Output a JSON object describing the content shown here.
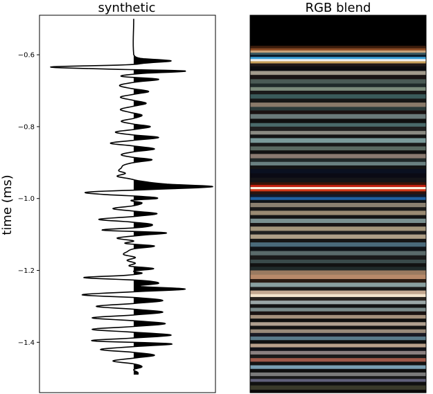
{
  "chart_data": [
    {
      "type": "line",
      "title": "synthetic",
      "xlabel": "",
      "ylabel": "time (ms)",
      "ylim": [
        -1.54,
        -0.49
      ],
      "yticks": [
        -0.6,
        -0.8,
        -1.0,
        -1.2,
        -1.4
      ],
      "ytick_labels": [
        "−0.6",
        "−0.8",
        "−1.0",
        "−1.2",
        "−1.4"
      ],
      "fill_positive": true,
      "series": [
        {
          "t": [
            -0.5,
            -0.6,
            -0.61,
            -0.617,
            -0.623,
            -0.628,
            -0.634,
            -0.64,
            -0.645,
            -0.652,
            -0.66,
            -0.668,
            -0.676,
            -0.685,
            -0.693,
            -0.702,
            -0.71,
            -0.718,
            -0.727,
            -0.735,
            -0.743,
            -0.752,
            -0.76,
            -0.768,
            -0.777,
            -0.785,
            -0.793,
            -0.8,
            -0.808,
            -0.815,
            -0.822,
            -0.83,
            -0.838,
            -0.846,
            -0.853,
            -0.862,
            -0.87,
            -0.878,
            -0.885,
            -0.892,
            -0.9,
            -0.907,
            -0.915,
            -0.923,
            -0.93,
            -0.938,
            -0.945,
            -0.952,
            -0.96,
            -0.967,
            -0.975,
            -0.982,
            -0.988,
            -0.995,
            -1.0,
            -1.005,
            -1.012,
            -1.02,
            -1.028,
            -1.035,
            -1.042,
            -1.05,
            -1.058,
            -1.065,
            -1.072,
            -1.08,
            -1.088,
            -1.095,
            -1.102,
            -1.11,
            -1.118,
            -1.125,
            -1.132,
            -1.14,
            -1.148,
            -1.156,
            -1.164,
            -1.172,
            -1.18,
            -1.188,
            -1.195,
            -1.202,
            -1.208,
            -1.214,
            -1.22,
            -1.228,
            -1.236,
            -1.244,
            -1.252,
            -1.26,
            -1.268,
            -1.276,
            -1.284,
            -1.292,
            -1.3,
            -1.308,
            -1.316,
            -1.324,
            -1.332,
            -1.34,
            -1.348,
            -1.356,
            -1.364,
            -1.372,
            -1.38,
            -1.388,
            -1.396,
            -1.404,
            -1.412,
            -1.42,
            -1.428,
            -1.436,
            -1.444,
            -1.452,
            -1.46,
            -1.468,
            -1.476,
            -1.484,
            -1.49
          ],
          "amplitude": [
            0,
            0,
            0.08,
            0.45,
            0.15,
            -0.1,
            -1.0,
            -0.3,
            0.62,
            0.1,
            -0.15,
            0.3,
            0.02,
            -0.17,
            -0.05,
            0.18,
            0.0,
            -0.16,
            0.0,
            0.15,
            0.0,
            -0.16,
            -0.05,
            0.1,
            0.0,
            -0.15,
            0.0,
            0.2,
            0.0,
            -0.22,
            -0.05,
            0.3,
            0.0,
            -0.28,
            -0.03,
            0.25,
            0.0,
            -0.15,
            -0.02,
            0.22,
            0.0,
            -0.12,
            -0.15,
            -0.18,
            -0.1,
            -0.2,
            -0.05,
            0.1,
            0.4,
            0.95,
            0.2,
            -0.55,
            -0.4,
            0.15,
            0.28,
            -0.03,
            0.1,
            0.0,
            -0.25,
            0.0,
            0.28,
            0.0,
            -0.42,
            -0.05,
            0.22,
            0.1,
            -0.38,
            0.38,
            0.1,
            -0.2,
            0.0,
            -0.1,
            0.25,
            0.0,
            -0.08,
            -0.12,
            0.02,
            -0.08,
            0.02,
            -0.05,
            0.24,
            0.0,
            0.1,
            -0.12,
            -0.6,
            0.1,
            0.3,
            0.05,
            0.62,
            -0.05,
            -0.62,
            0.05,
            0.35,
            0.0,
            -0.45,
            0.0,
            0.35,
            0.0,
            -0.5,
            0.0,
            0.38,
            0.0,
            -0.5,
            0.0,
            0.45,
            0.0,
            -0.5,
            0.45,
            0.0,
            -0.4,
            0.0,
            0.25,
            0.0,
            -0.25,
            0.0,
            0.1,
            0.0,
            0.05,
            0.05
          ]
        }
      ]
    },
    {
      "type": "heatmap",
      "title": "RGB blend",
      "xlabel": "",
      "ylabel": "",
      "ylim": [
        -1.54,
        -0.49
      ],
      "bands": [
        {
          "t0": -0.49,
          "t1": -0.575,
          "color": "#000000"
        },
        {
          "t0": -0.575,
          "t1": -0.582,
          "color": "#3a1c0c"
        },
        {
          "t0": -0.582,
          "t1": -0.588,
          "color": "#8a4a24"
        },
        {
          "t0": -0.588,
          "t1": -0.594,
          "color": "#c8a27a"
        },
        {
          "t0": -0.594,
          "t1": -0.6,
          "color": "#3c5a62"
        },
        {
          "t0": -0.6,
          "t1": -0.606,
          "color": "#0a1a2a"
        },
        {
          "t0": -0.606,
          "t1": -0.612,
          "color": "#3aa0d8"
        },
        {
          "t0": -0.612,
          "t1": -0.618,
          "color": "#f2f2f2"
        },
        {
          "t0": -0.618,
          "t1": -0.624,
          "color": "#c8a05a"
        },
        {
          "t0": -0.624,
          "t1": -0.632,
          "color": "#201818"
        },
        {
          "t0": -0.632,
          "t1": -0.645,
          "color": "#0c0c10"
        },
        {
          "t0": -0.645,
          "t1": -0.656,
          "color": "#a29a8c"
        },
        {
          "t0": -0.656,
          "t1": -0.668,
          "color": "#1a1414"
        },
        {
          "t0": -0.668,
          "t1": -0.68,
          "color": "#4a5a55"
        },
        {
          "t0": -0.68,
          "t1": -0.69,
          "color": "#202a2a"
        },
        {
          "t0": -0.69,
          "t1": -0.7,
          "color": "#7a8a7a"
        },
        {
          "t0": -0.7,
          "t1": -0.71,
          "color": "#1a1a1a"
        },
        {
          "t0": -0.71,
          "t1": -0.722,
          "color": "#3a5a5a"
        },
        {
          "t0": -0.722,
          "t1": -0.733,
          "color": "#161616"
        },
        {
          "t0": -0.733,
          "t1": -0.745,
          "color": "#8a7a6a"
        },
        {
          "t0": -0.745,
          "t1": -0.755,
          "color": "#2a3a3a"
        },
        {
          "t0": -0.755,
          "t1": -0.765,
          "color": "#1a1212"
        },
        {
          "t0": -0.765,
          "t1": -0.778,
          "color": "#6a7a7a"
        },
        {
          "t0": -0.778,
          "t1": -0.79,
          "color": "#101010"
        },
        {
          "t0": -0.79,
          "t1": -0.8,
          "color": "#4a6a6a"
        },
        {
          "t0": -0.8,
          "t1": -0.812,
          "color": "#202020"
        },
        {
          "t0": -0.812,
          "t1": -0.822,
          "color": "#8a8a82"
        },
        {
          "t0": -0.822,
          "t1": -0.832,
          "color": "#141414"
        },
        {
          "t0": -0.832,
          "t1": -0.845,
          "color": "#7a9a9a"
        },
        {
          "t0": -0.845,
          "t1": -0.855,
          "color": "#1a1a1a"
        },
        {
          "t0": -0.855,
          "t1": -0.866,
          "color": "#5a6a62"
        },
        {
          "t0": -0.866,
          "t1": -0.876,
          "color": "#121212"
        },
        {
          "t0": -0.876,
          "t1": -0.888,
          "color": "#8a7a70"
        },
        {
          "t0": -0.888,
          "t1": -0.898,
          "color": "#202828"
        },
        {
          "t0": -0.898,
          "t1": -0.908,
          "color": "#6a8080"
        },
        {
          "t0": -0.908,
          "t1": -0.918,
          "color": "#141414"
        },
        {
          "t0": -0.918,
          "t1": -0.93,
          "color": "#0a1020"
        },
        {
          "t0": -0.93,
          "t1": -0.942,
          "color": "#0a0a14"
        },
        {
          "t0": -0.942,
          "t1": -0.955,
          "color": "#141418"
        },
        {
          "t0": -0.955,
          "t1": -0.962,
          "color": "#3a1408"
        },
        {
          "t0": -0.962,
          "t1": -0.968,
          "color": "#c02010"
        },
        {
          "t0": -0.968,
          "t1": -0.974,
          "color": "#fff4e4"
        },
        {
          "t0": -0.974,
          "t1": -0.98,
          "color": "#d03818"
        },
        {
          "t0": -0.98,
          "t1": -0.988,
          "color": "#2a1410"
        },
        {
          "t0": -0.988,
          "t1": -0.996,
          "color": "#101a2a"
        },
        {
          "t0": -0.996,
          "t1": -1.004,
          "color": "#2060a0"
        },
        {
          "t0": -1.004,
          "t1": -1.012,
          "color": "#101418"
        },
        {
          "t0": -1.012,
          "t1": -1.024,
          "color": "#8a8070"
        },
        {
          "t0": -1.024,
          "t1": -1.034,
          "color": "#1a1a1a"
        },
        {
          "t0": -1.034,
          "t1": -1.046,
          "color": "#9a8a72"
        },
        {
          "t0": -1.046,
          "t1": -1.056,
          "color": "#141414"
        },
        {
          "t0": -1.056,
          "t1": -1.068,
          "color": "#7a9090"
        },
        {
          "t0": -1.068,
          "t1": -1.078,
          "color": "#1a1616"
        },
        {
          "t0": -1.078,
          "t1": -1.09,
          "color": "#a4967c"
        },
        {
          "t0": -1.09,
          "t1": -1.1,
          "color": "#202020"
        },
        {
          "t0": -1.1,
          "t1": -1.112,
          "color": "#b0a088"
        },
        {
          "t0": -1.112,
          "t1": -1.122,
          "color": "#161616"
        },
        {
          "t0": -1.122,
          "t1": -1.134,
          "color": "#4a6a7a"
        },
        {
          "t0": -1.134,
          "t1": -1.146,
          "color": "#101418"
        },
        {
          "t0": -1.146,
          "t1": -1.158,
          "color": "#5a6a6a"
        },
        {
          "t0": -1.158,
          "t1": -1.17,
          "color": "#1a1a1a"
        },
        {
          "t0": -1.17,
          "t1": -1.18,
          "color": "#3a4a4a"
        },
        {
          "t0": -1.18,
          "t1": -1.19,
          "color": "#121212"
        },
        {
          "t0": -1.19,
          "t1": -1.2,
          "color": "#202a2a"
        },
        {
          "t0": -1.2,
          "t1": -1.212,
          "color": "#9a7a60"
        },
        {
          "t0": -1.212,
          "t1": -1.224,
          "color": "#b88a6a"
        },
        {
          "t0": -1.224,
          "t1": -1.234,
          "color": "#2a1c14"
        },
        {
          "t0": -1.234,
          "t1": -1.246,
          "color": "#8aa0a0"
        },
        {
          "t0": -1.246,
          "t1": -1.256,
          "color": "#1a1a1a"
        },
        {
          "t0": -1.256,
          "t1": -1.266,
          "color": "#c4a890"
        },
        {
          "t0": -1.266,
          "t1": -1.274,
          "color": "#f4e4cc"
        },
        {
          "t0": -1.274,
          "t1": -1.284,
          "color": "#2a2420"
        },
        {
          "t0": -1.284,
          "t1": -1.294,
          "color": "#9aa6a6"
        },
        {
          "t0": -1.294,
          "t1": -1.304,
          "color": "#141414"
        },
        {
          "t0": -1.304,
          "t1": -1.314,
          "color": "#7a8a8a"
        },
        {
          "t0": -1.314,
          "t1": -1.324,
          "color": "#1a1212"
        },
        {
          "t0": -1.324,
          "t1": -1.334,
          "color": "#a4907c"
        },
        {
          "t0": -1.334,
          "t1": -1.344,
          "color": "#101010"
        },
        {
          "t0": -1.344,
          "t1": -1.354,
          "color": "#b0a090"
        },
        {
          "t0": -1.354,
          "t1": -1.364,
          "color": "#141414"
        },
        {
          "t0": -1.364,
          "t1": -1.374,
          "color": "#9a8a7a"
        },
        {
          "t0": -1.374,
          "t1": -1.384,
          "color": "#1a1a24"
        },
        {
          "t0": -1.384,
          "t1": -1.394,
          "color": "#5a7a8a"
        },
        {
          "t0": -1.394,
          "t1": -1.404,
          "color": "#101010"
        },
        {
          "t0": -1.404,
          "t1": -1.414,
          "color": "#b8a08a"
        },
        {
          "t0": -1.414,
          "t1": -1.424,
          "color": "#121218"
        },
        {
          "t0": -1.424,
          "t1": -1.434,
          "color": "#8a8080"
        },
        {
          "t0": -1.434,
          "t1": -1.444,
          "color": "#1a1a1a"
        },
        {
          "t0": -1.444,
          "t1": -1.454,
          "color": "#a05a4a"
        },
        {
          "t0": -1.454,
          "t1": -1.464,
          "color": "#141414"
        },
        {
          "t0": -1.464,
          "t1": -1.474,
          "color": "#7aa0b4"
        },
        {
          "t0": -1.474,
          "t1": -1.484,
          "color": "#101010"
        },
        {
          "t0": -1.484,
          "t1": -1.494,
          "color": "#7a7a7a"
        },
        {
          "t0": -1.494,
          "t1": -1.502,
          "color": "#1a1a1a"
        },
        {
          "t0": -1.502,
          "t1": -1.51,
          "color": "#60607a"
        },
        {
          "t0": -1.51,
          "t1": -1.52,
          "color": "#101010"
        },
        {
          "t0": -1.52,
          "t1": -1.532,
          "color": "#3a3a2a"
        },
        {
          "t0": -1.532,
          "t1": -1.54,
          "color": "#0a0a0a"
        }
      ]
    }
  ]
}
